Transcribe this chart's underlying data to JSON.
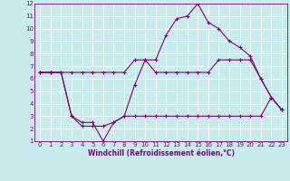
{
  "xlabel": "Windchill (Refroidissement éolien,°C)",
  "bg_color": "#c8ecec",
  "line_color": "#800080",
  "grid_color": "#ffffff",
  "xlim": [
    -0.5,
    23.5
  ],
  "ylim": [
    1,
    12
  ],
  "yticks": [
    1,
    2,
    3,
    4,
    5,
    6,
    7,
    8,
    9,
    10,
    11,
    12
  ],
  "xticks": [
    0,
    1,
    2,
    3,
    4,
    5,
    6,
    7,
    8,
    9,
    10,
    11,
    12,
    13,
    14,
    15,
    16,
    17,
    18,
    19,
    20,
    21,
    22,
    23
  ],
  "series": [
    [
      6.5,
      6.5,
      6.5,
      3.0,
      2.5,
      2.5,
      1.0,
      2.5,
      3.0,
      5.5,
      7.5,
      7.5,
      9.5,
      10.8,
      11.0,
      12.0,
      10.5,
      10.0,
      9.0,
      8.5,
      7.8,
      6.0,
      4.5,
      3.5
    ],
    [
      6.5,
      6.5,
      6.5,
      3.0,
      2.2,
      2.2,
      2.2,
      2.5,
      3.0,
      3.0,
      3.0,
      3.0,
      3.0,
      3.0,
      3.0,
      3.0,
      3.0,
      3.0,
      3.0,
      3.0,
      3.0,
      3.0,
      4.5,
      3.5
    ],
    [
      6.5,
      6.5,
      6.5,
      6.5,
      6.5,
      6.5,
      6.5,
      6.5,
      6.5,
      7.5,
      7.5,
      6.5,
      6.5,
      6.5,
      6.5,
      6.5,
      6.5,
      7.5,
      7.5,
      7.5,
      7.5,
      6.0,
      4.5,
      3.5
    ]
  ],
  "marker": "+",
  "markersize": 3,
  "linewidth": 0.8,
  "tick_fontsize": 5,
  "xlabel_fontsize": 5.5
}
